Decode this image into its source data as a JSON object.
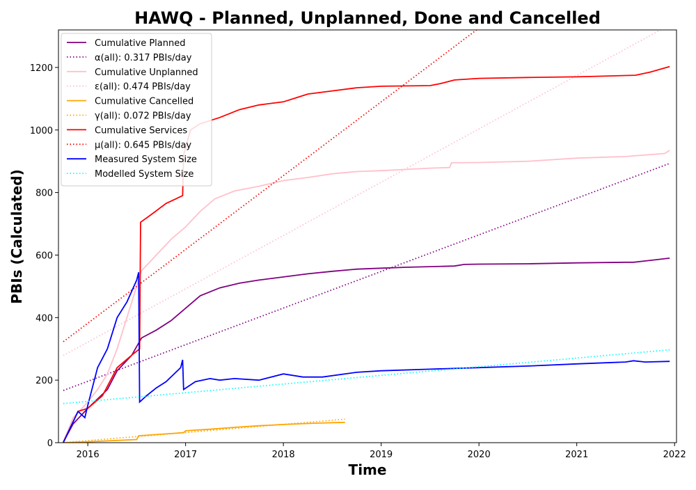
{
  "chart_data": {
    "type": "line",
    "title": "HAWQ - Planned, Unplanned, Done  and Cancelled",
    "xlabel": "Time",
    "ylabel": "PBIs (Calculated)",
    "xlim": [
      2015.7,
      2022.02
    ],
    "ylim": [
      0,
      1320
    ],
    "x_ticks": [
      2016,
      2017,
      2018,
      2019,
      2020,
      2021,
      2022
    ],
    "y_ticks": [
      0,
      200,
      400,
      600,
      800,
      1000,
      1200
    ],
    "grid": false,
    "legend_position": "top-left",
    "series": [
      {
        "name": "Cumulative Planned",
        "style": "solid",
        "color": "#800080",
        "x": [
          2015.75,
          2015.85,
          2016.0,
          2016.1,
          2016.2,
          2016.3,
          2016.45,
          2016.55,
          2016.7,
          2016.85,
          2017.0,
          2017.15,
          2017.35,
          2017.55,
          2017.75,
          2018.0,
          2018.25,
          2018.5,
          2018.75,
          2019.0,
          2019.25,
          2019.5,
          2019.75,
          2019.85,
          2020.0,
          2020.5,
          2021.0,
          2021.5,
          2021.58,
          2021.75,
          2021.95
        ],
        "y": [
          2,
          60,
          110,
          140,
          170,
          230,
          280,
          335,
          360,
          390,
          430,
          470,
          495,
          510,
          520,
          530,
          540,
          548,
          555,
          558,
          561,
          563,
          565,
          570,
          571,
          572,
          575,
          577,
          577,
          583,
          590
        ]
      },
      {
        "name": "α(all): 0.317 PBIs/day",
        "style": "dotted",
        "color": "#800080",
        "x": [
          2015.75,
          2021.95
        ],
        "y": [
          167,
          893
        ]
      },
      {
        "name": "Cumulative Unplanned",
        "style": "solid",
        "color": "#ffc0cb",
        "x": [
          2015.75,
          2015.85,
          2016.0,
          2016.1,
          2016.2,
          2016.3,
          2016.45,
          2016.55,
          2016.7,
          2016.85,
          2017.0,
          2017.15,
          2017.3,
          2017.5,
          2017.75,
          2018.0,
          2018.25,
          2018.5,
          2018.75,
          2019.0,
          2019.5,
          2019.7,
          2019.72,
          2020.0,
          2020.5,
          2021.0,
          2021.5,
          2021.9,
          2021.95
        ],
        "y": [
          2,
          80,
          130,
          170,
          220,
          300,
          450,
          550,
          600,
          650,
          690,
          740,
          780,
          805,
          820,
          838,
          848,
          860,
          867,
          870,
          878,
          880,
          895,
          896,
          900,
          910,
          915,
          925,
          935
        ]
      },
      {
        "name": "ε(all): 0.474 PBIs/day",
        "style": "dotted",
        "color": "#ffc0cb",
        "x": [
          2015.75,
          2021.95
        ],
        "y": [
          279,
          1336
        ]
      },
      {
        "name": "Cumulative Cancelled",
        "style": "solid",
        "color": "#ffa500",
        "x": [
          2015.75,
          2016.0,
          2016.5,
          2016.52,
          2016.75,
          2016.98,
          2017.0,
          2017.25,
          2017.5,
          2017.75,
          2018.0,
          2018.3,
          2018.63
        ],
        "y": [
          0,
          3,
          10,
          22,
          27,
          32,
          38,
          43,
          49,
          54,
          58,
          62,
          65
        ]
      },
      {
        "name": "γ(all): 0.072 PBIs/day",
        "style": "dotted",
        "color": "#ffa500",
        "x": [
          2015.75,
          2018.63
        ],
        "y": [
          0,
          75
        ]
      },
      {
        "name": "Cumulative Services",
        "style": "solid",
        "color": "#ff0000",
        "x": [
          2015.75,
          2015.9,
          2016.0,
          2016.15,
          2016.3,
          2016.45,
          2016.53,
          2016.54,
          2016.65,
          2016.8,
          2016.97,
          2016.98,
          2017.05,
          2017.15,
          2017.35,
          2017.55,
          2017.75,
          2018.0,
          2018.15,
          2018.25,
          2018.5,
          2018.75,
          2019.0,
          2019.5,
          2019.6,
          2019.75,
          2020.0,
          2020.5,
          2021.0,
          2021.6,
          2021.75,
          2021.95
        ],
        "y": [
          2,
          100,
          110,
          150,
          240,
          280,
          300,
          705,
          730,
          765,
          790,
          920,
          1000,
          1020,
          1040,
          1065,
          1080,
          1090,
          1105,
          1115,
          1125,
          1135,
          1140,
          1142,
          1148,
          1160,
          1165,
          1168,
          1170,
          1175,
          1185,
          1203
        ]
      },
      {
        "name": "μ(all): 0.645 PBIs/day",
        "style": "dotted",
        "color": "#ff0000",
        "x": [
          2015.75,
          2020.0
        ],
        "y": [
          323,
          1326
        ]
      },
      {
        "name": "Measured System Size",
        "style": "solid",
        "color": "#0000ff",
        "x": [
          2015.75,
          2015.9,
          2015.97,
          2016.0,
          2016.1,
          2016.2,
          2016.3,
          2016.4,
          2016.5,
          2016.52,
          2016.53,
          2016.6,
          2016.7,
          2016.8,
          2016.95,
          2016.97,
          2016.98,
          2017.1,
          2017.25,
          2017.35,
          2017.5,
          2017.75,
          2018.0,
          2018.2,
          2018.4,
          2018.75,
          2019.0,
          2019.5,
          2020.0,
          2020.5,
          2021.0,
          2021.5,
          2021.58,
          2021.7,
          2021.95
        ],
        "y": [
          0,
          100,
          80,
          120,
          240,
          300,
          400,
          450,
          520,
          545,
          130,
          150,
          175,
          195,
          240,
          265,
          170,
          195,
          205,
          200,
          205,
          200,
          220,
          210,
          210,
          225,
          230,
          235,
          240,
          245,
          252,
          258,
          262,
          258,
          260
        ]
      },
      {
        "name": "Modelled System Size",
        "style": "dotted",
        "color": "#00ffff",
        "x": [
          2015.75,
          2021.95
        ],
        "y": [
          125,
          297
        ]
      }
    ]
  }
}
